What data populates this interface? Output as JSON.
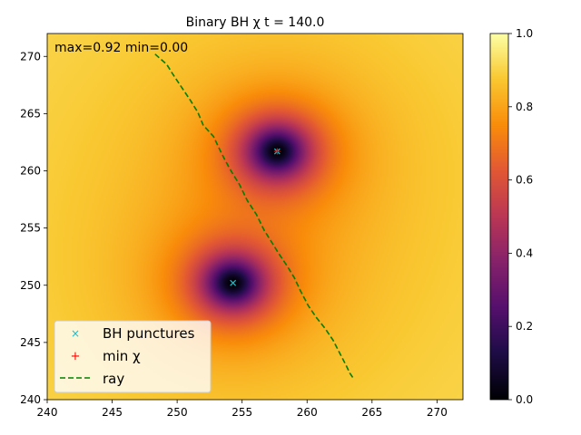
{
  "chart_data": {
    "type": "heatmap",
    "title": "Binary BH χ t = 140.0",
    "xlabel": "",
    "ylabel": "",
    "xlim": [
      240,
      272
    ],
    "ylim": [
      240,
      272
    ],
    "x_ticks": [
      240,
      245,
      250,
      255,
      260,
      265,
      270
    ],
    "y_ticks": [
      240,
      245,
      250,
      255,
      260,
      265,
      270
    ],
    "annotation": "max=0.92 min=0.00",
    "colormap": "inferno",
    "colorbar": {
      "min": 0.0,
      "max": 1.0,
      "ticks": [
        "0.0",
        "0.2",
        "0.4",
        "0.6",
        "0.8",
        "1.0"
      ]
    },
    "field": {
      "max": 0.92,
      "min": 0.0,
      "minima": [
        {
          "x": 257.7,
          "y": 261.7
        },
        {
          "x": 254.3,
          "y": 250.2
        }
      ]
    },
    "series": [
      {
        "name": "BH punctures",
        "type": "marker",
        "marker": "x",
        "color": "#17becf",
        "points": [
          [
            257.7,
            261.7
          ],
          [
            254.3,
            250.2
          ]
        ]
      },
      {
        "name": "min χ",
        "type": "marker",
        "marker": "+",
        "color": "#ff0000",
        "points": [
          [
            257.7,
            261.7
          ]
        ]
      },
      {
        "name": "ray",
        "type": "line",
        "style": "dashed",
        "color": "#008000",
        "points": [
          [
            248.3,
            270.2
          ],
          [
            249.2,
            269.3
          ],
          [
            249.7,
            268.4
          ],
          [
            250.4,
            267.2
          ],
          [
            251.0,
            266.2
          ],
          [
            251.6,
            265.1
          ],
          [
            252.0,
            264.0
          ],
          [
            252.8,
            263.0
          ],
          [
            253.3,
            261.8
          ],
          [
            253.7,
            260.9
          ],
          [
            254.2,
            259.9
          ],
          [
            254.8,
            258.8
          ],
          [
            255.4,
            257.4
          ],
          [
            256.1,
            256.2
          ],
          [
            256.7,
            254.8
          ],
          [
            257.2,
            253.9
          ],
          [
            257.8,
            252.8
          ],
          [
            258.4,
            251.8
          ],
          [
            259.0,
            250.7
          ],
          [
            259.5,
            249.5
          ],
          [
            260.1,
            248.2
          ],
          [
            260.7,
            247.2
          ],
          [
            261.4,
            246.2
          ],
          [
            262.0,
            245.2
          ],
          [
            262.5,
            244.1
          ],
          [
            263.0,
            243.0
          ],
          [
            263.3,
            242.3
          ],
          [
            263.6,
            241.8
          ]
        ]
      }
    ],
    "legend_position": "lower-left"
  }
}
